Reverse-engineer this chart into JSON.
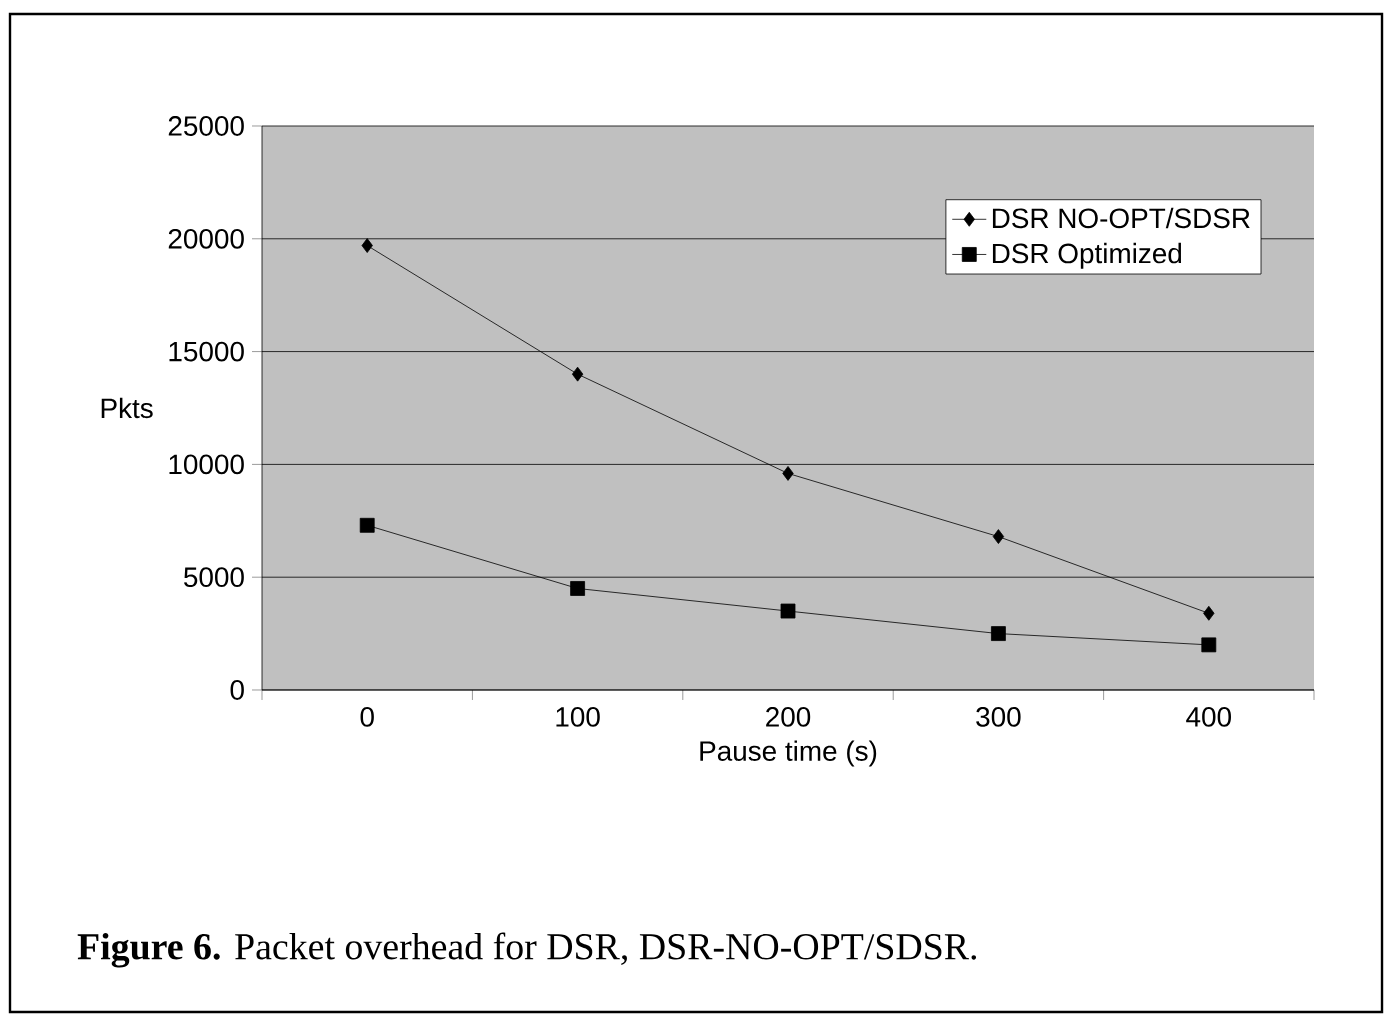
{
  "chart_data": {
    "type": "line",
    "xlabel": "Pause time (s)",
    "ylabel": "Pkts",
    "categories": [
      "0",
      "100",
      "200",
      "300",
      "400"
    ],
    "series": [
      {
        "name": "DSR NO-OPT/SDSR",
        "color": "#000000",
        "marker": "diamond",
        "values": [
          19700,
          14000,
          9600,
          6800,
          3400
        ]
      },
      {
        "name": "DSR Optimized",
        "color": "#000000",
        "marker": "square",
        "values": [
          7300,
          4500,
          3500,
          2500,
          2000
        ]
      }
    ],
    "ylim": [
      0,
      25000
    ],
    "yticks": [
      0,
      5000,
      10000,
      15000,
      20000,
      25000
    ],
    "grid": "y",
    "legend": "top right",
    "line_style": "solid",
    "annotations": [
      "**Figure 6.**  Packet overhead for DSR, DSR-NO-OPT/SDSR."
    ]
  }
}
